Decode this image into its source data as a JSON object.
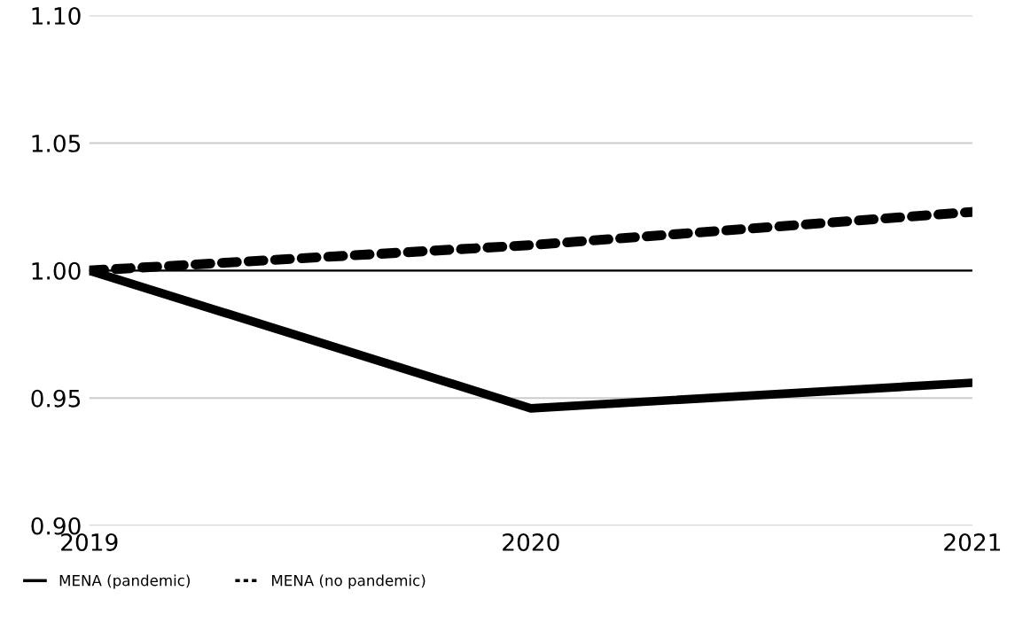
{
  "chart_data": {
    "type": "line",
    "categories": [
      "2019",
      "2020",
      "2021"
    ],
    "series": [
      {
        "name": "MENA (pandemic)",
        "color": "#000000",
        "values": [
          1.0,
          0.946,
          0.956
        ],
        "line_style": "solid"
      },
      {
        "name": "MENA (no pandemic)",
        "color": "#000000",
        "values": [
          1.0,
          1.01,
          1.023
        ],
        "line_style": "dotted"
      }
    ],
    "ylim": [
      0.9,
      1.1
    ],
    "yticks": [
      {
        "value": 0.9,
        "label": "0.90"
      },
      {
        "value": 0.95,
        "label": "0.95"
      },
      {
        "value": 1.0,
        "label": "1.00"
      },
      {
        "value": 1.05,
        "label": "1.05"
      },
      {
        "value": 1.1,
        "label": "1.10"
      }
    ],
    "ref_lines": [
      {
        "axis": "y",
        "value": 1.0,
        "label": null,
        "color": "#000000"
      }
    ],
    "grid": "y",
    "legend": "bottom left",
    "marker": "none"
  }
}
